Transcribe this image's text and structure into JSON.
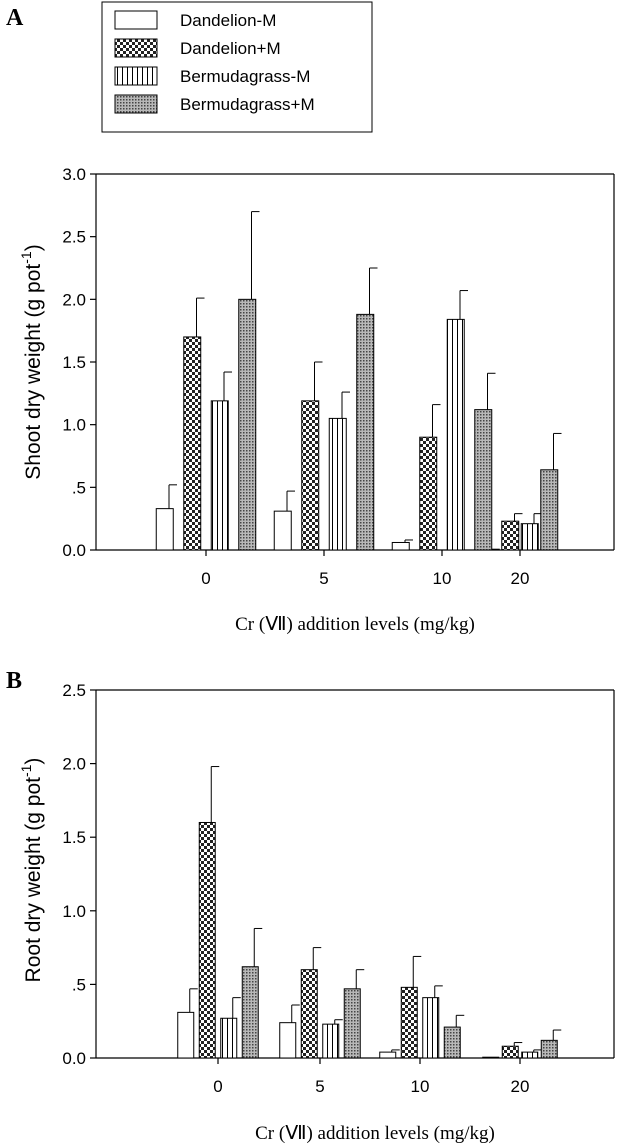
{
  "chart_data": [
    {
      "panel": "A",
      "type": "bar",
      "xlabel": "Cr (Ⅶ) addition levels (mg/kg)",
      "ylabel": "Shoot dry weight (g pot",
      "ylabel_sup": "-1",
      "ylabel_close": ")",
      "ylim": [
        0,
        3.0
      ],
      "yticks": [
        "0.0",
        ".5",
        "1.0",
        "1.5",
        "2.0",
        "2.5",
        "3.0"
      ],
      "categories": [
        "0",
        "5",
        "10",
        "20"
      ],
      "series": [
        {
          "name": "Dandelion-M",
          "pattern": "white",
          "values": [
            0.33,
            0.31,
            0.06,
            0.0
          ],
          "errors": [
            0.19,
            0.16,
            0.02,
            0.0
          ]
        },
        {
          "name": "Dandelion+M",
          "pattern": "checker",
          "values": [
            1.7,
            1.19,
            0.9,
            0.23
          ],
          "errors": [
            0.31,
            0.31,
            0.26,
            0.06
          ]
        },
        {
          "name": "Bermudagrass-M",
          "pattern": "vlines",
          "values": [
            1.19,
            1.05,
            1.84,
            0.21
          ],
          "errors": [
            0.23,
            0.21,
            0.23,
            0.08
          ]
        },
        {
          "name": "Bermudagrass+M",
          "pattern": "dots",
          "values": [
            2.0,
            1.88,
            1.12,
            0.64
          ],
          "errors": [
            0.7,
            0.37,
            0.29,
            0.29
          ]
        }
      ]
    },
    {
      "panel": "B",
      "type": "bar",
      "xlabel": "Cr (Ⅶ) addition levels (mg/kg)",
      "ylabel": "Root dry weight (g pot",
      "ylabel_sup": "-1",
      "ylabel_close": ")",
      "ylim": [
        0,
        2.5
      ],
      "yticks": [
        "0.0",
        ".5",
        "1.0",
        "1.5",
        "2.0",
        "2.5"
      ],
      "categories": [
        "0",
        "5",
        "10",
        "20"
      ],
      "series": [
        {
          "name": "Dandelion-M",
          "pattern": "white",
          "values": [
            0.31,
            0.24,
            0.04,
            0.0
          ],
          "errors": [
            0.16,
            0.12,
            0.015,
            0.0
          ]
        },
        {
          "name": "Dandelion+M",
          "pattern": "checker",
          "values": [
            1.6,
            0.6,
            0.48,
            0.08
          ],
          "errors": [
            0.38,
            0.15,
            0.21,
            0.025
          ]
        },
        {
          "name": "Bermudagrass-M",
          "pattern": "vlines",
          "values": [
            0.27,
            0.23,
            0.41,
            0.04
          ],
          "errors": [
            0.14,
            0.03,
            0.08,
            0.015
          ]
        },
        {
          "name": "Bermudagrass+M",
          "pattern": "dots",
          "values": [
            0.62,
            0.47,
            0.21,
            0.12
          ],
          "errors": [
            0.26,
            0.13,
            0.08,
            0.07
          ]
        }
      ]
    }
  ],
  "legend": {
    "items": [
      {
        "label": "Dandelion-M",
        "pattern": "white"
      },
      {
        "label": "Dandelion+M",
        "pattern": "checker"
      },
      {
        "label": "Bermudagrass-M",
        "pattern": "vlines"
      },
      {
        "label": "Bermudagrass+M",
        "pattern": "dots"
      }
    ]
  }
}
